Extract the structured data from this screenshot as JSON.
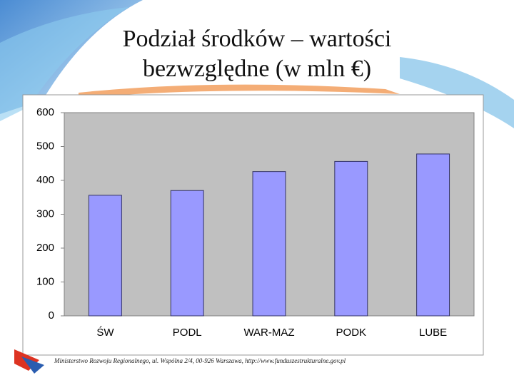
{
  "chart_data": {
    "type": "bar",
    "title": "Podział środków – wartości bezwzględne (w mln €)",
    "categories": [
      "ŚW",
      "PODL",
      "WAR-MAZ",
      "PODK",
      "LUBE"
    ],
    "values": [
      356,
      370,
      426,
      456,
      478
    ],
    "color": "#9999ff",
    "ylim": [
      0,
      600
    ],
    "yticks": [
      0,
      100,
      200,
      300,
      400,
      500,
      600
    ],
    "grid": false
  },
  "footer": "Ministerstwo Rozwoju Regionalnego, ul. Wspólna 2/4, 00-926 Warszawa, http://www.funduszestrukturalne.gov.pl"
}
